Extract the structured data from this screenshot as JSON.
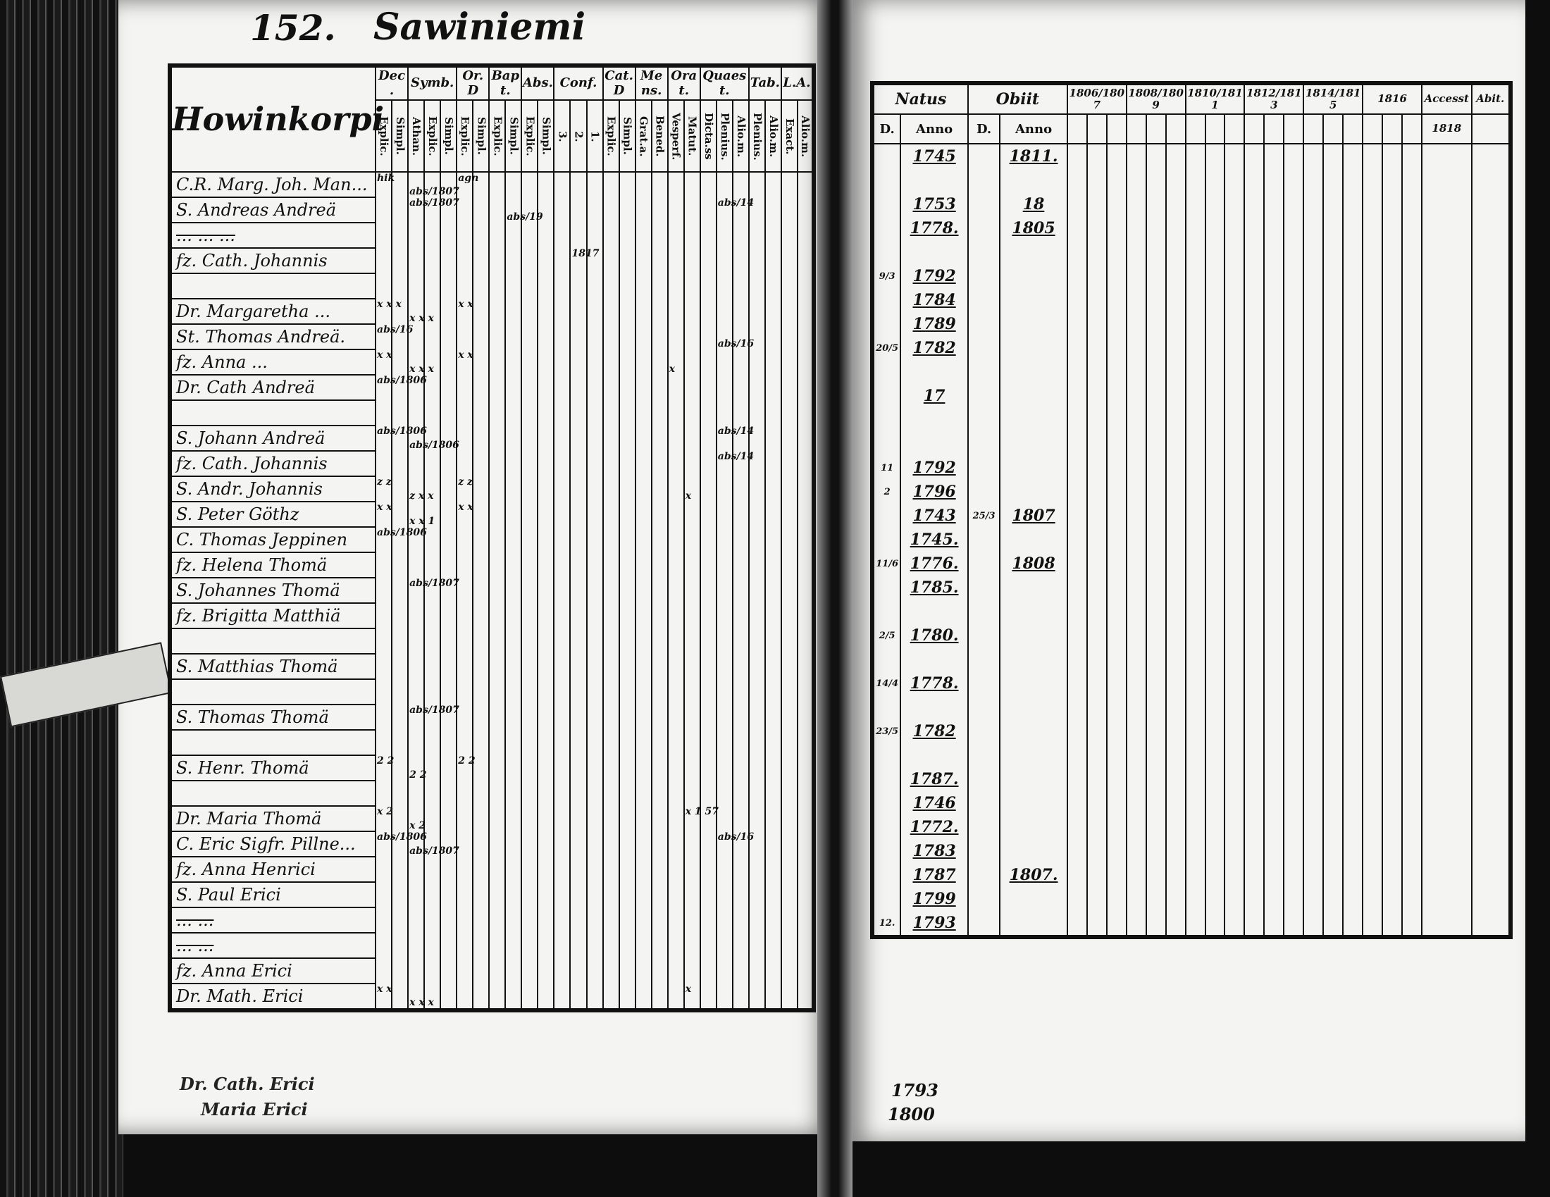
{
  "left_page": {
    "page_number": "152.",
    "village": "Sawiniemi",
    "farm": "Howinkorpi",
    "column_groups": [
      {
        "label": "Dec.",
        "subs": [
          "Explic.",
          "Simpl."
        ]
      },
      {
        "label": "Symb.",
        "subs": [
          "Athan.",
          "Explic.",
          "Simpl."
        ]
      },
      {
        "label": "Or.D",
        "subs": [
          "Explic.",
          "Simpl."
        ]
      },
      {
        "label": "Bapt.",
        "subs": [
          "Explic.",
          "Simpl."
        ]
      },
      {
        "label": "Abs.",
        "subs": [
          "Explic.",
          "Simpl."
        ]
      },
      {
        "label": "Conf.",
        "subs": [
          "3.",
          "2.",
          "1."
        ]
      },
      {
        "label": "Cat.D",
        "subs": [
          "Explic.",
          "Simpl."
        ]
      },
      {
        "label": "Mens.",
        "subs": [
          "Grat.a.",
          "Bened."
        ]
      },
      {
        "label": "Orat.",
        "subs": [
          "Vesperf.",
          "Matut."
        ]
      },
      {
        "label": "Quaest.",
        "subs": [
          "Dicta.ss",
          "Plenius.",
          "Alio.m."
        ]
      },
      {
        "label": "Tab.",
        "subs": [
          "Plenius.",
          "Alio.m."
        ]
      },
      {
        "label": "L.A.",
        "subs": [
          "Exact.",
          "Alio.m."
        ]
      }
    ],
    "rows": [
      {
        "name": "C.R. Marg. Joh. Man...",
        "marks": {
          "0": "hik",
          "2": "abs/1807",
          "5": "agn"
        }
      },
      {
        "name": "S. Andreas Andreä",
        "marks": {
          "2": "abs/1807",
          "8": "abs/19",
          "21": "abs/14"
        }
      },
      {
        "name": "... ... ...",
        "struck": true
      },
      {
        "name": "fz. Cath. Johannis",
        "marks": {
          "12": "1817"
        }
      },
      {
        "name": "",
        "marks": {}
      },
      {
        "name": "Dr. Margaretha ...",
        "marks": {
          "0": "x x x",
          "2": "x x x",
          "5": "x x"
        }
      },
      {
        "name": "St. Thomas Andreä.",
        "marks": {
          "0": "abs/16",
          "21": "abs/16"
        }
      },
      {
        "name": "fz. Anna ...",
        "marks": {
          "0": "x x",
          "2": "x x x",
          "5": "x x",
          "18": "x"
        }
      },
      {
        "name": "Dr. Cath Andreä",
        "marks": {
          "0": "abs/1806"
        }
      },
      {
        "name": "",
        "marks": {}
      },
      {
        "name": "S. Johann Andreä",
        "marks": {
          "0": "abs/1806",
          "2": "abs/1806",
          "21": "abs/14"
        }
      },
      {
        "name": "fz. Cath. Johannis",
        "marks": {
          "21": "abs/14"
        }
      },
      {
        "name": "S. Andr. Johannis",
        "marks": {
          "0": "z z",
          "2": "z x x",
          "5": "z z",
          "19": "x"
        }
      },
      {
        "name": "S. Peter Göthz",
        "marks": {
          "0": "x x",
          "2": "x x 1",
          "5": "x x"
        }
      },
      {
        "name": "C. Thomas Jeppinen",
        "marks": {
          "0": "abs/1806"
        }
      },
      {
        "name": "fz. Helena Thomä",
        "marks": {}
      },
      {
        "name": "S. Johannes Thomä",
        "marks": {
          "2": "abs/1807"
        }
      },
      {
        "name": "fz. Brigitta Matthiä",
        "marks": {}
      },
      {
        "name": "",
        "marks": {}
      },
      {
        "name": "S. Matthias Thomä",
        "marks": {}
      },
      {
        "name": "",
        "marks": {}
      },
      {
        "name": "S. Thomas Thomä",
        "marks": {
          "2": "abs/1807"
        }
      },
      {
        "name": "",
        "marks": {}
      },
      {
        "name": "S. Henr. Thomä",
        "marks": {
          "0": "2 2",
          "2": "2 2",
          "5": "2 2"
        }
      },
      {
        "name": "",
        "marks": {}
      },
      {
        "name": "Dr. Maria Thomä",
        "marks": {
          "0": "x 2",
          "2": "x 2",
          "19": "x 1 57"
        }
      },
      {
        "name": "C. Eric Sigfr. Pillne...",
        "marks": {
          "0": "abs/1806",
          "2": "abs/1807",
          "21": "abs/16"
        }
      },
      {
        "name": "fz. Anna Henrici",
        "marks": {}
      },
      {
        "name": "S. Paul Erici",
        "marks": {}
      },
      {
        "name": "... ...",
        "struck": true
      },
      {
        "name": "... ...",
        "struck": true
      },
      {
        "name": "fz. Anna Erici",
        "marks": {}
      },
      {
        "name": "Dr. Math. Erici",
        "marks": {
          "0": "x x",
          "2": "x x x",
          "19": "x"
        }
      }
    ],
    "extra_names": [
      "Dr. Cath. Erici",
      "Maria Erici"
    ]
  },
  "right_page": {
    "natus_label": "Natus",
    "obiit_label": "Obiit",
    "d_label": "D.",
    "anno_label": "Anno",
    "year_groups": [
      "1806/1807",
      "1808/1809",
      "1810/1811",
      "1812/1813",
      "1814/1815",
      "1816"
    ],
    "accessit_label": "Accesst",
    "accessit_year": "1818",
    "abit_label": "Abit.",
    "rows": [
      {
        "d": "",
        "natus": "1745",
        "od": "",
        "obiit": "1811."
      },
      {
        "d": "",
        "natus": "",
        "od": "",
        "obiit": ""
      },
      {
        "d": "",
        "natus": "1753",
        "od": "",
        "obiit": "18"
      },
      {
        "d": "",
        "natus": "1778.",
        "od": "",
        "obiit": "1805"
      },
      {
        "d": "",
        "natus": "",
        "od": "",
        "obiit": ""
      },
      {
        "d": "9/3",
        "natus": "1792",
        "od": "",
        "obiit": ""
      },
      {
        "d": "",
        "natus": "1784",
        "od": "",
        "obiit": ""
      },
      {
        "d": "",
        "natus": "1789",
        "od": "",
        "obiit": ""
      },
      {
        "d": "20/5",
        "natus": "1782",
        "od": "",
        "obiit": ""
      },
      {
        "d": "",
        "natus": "",
        "od": "",
        "obiit": ""
      },
      {
        "d": "",
        "natus": "17",
        "od": "",
        "obiit": ""
      },
      {
        "d": "",
        "natus": "",
        "od": "",
        "obiit": ""
      },
      {
        "d": "",
        "natus": "",
        "od": "",
        "obiit": ""
      },
      {
        "d": "11",
        "natus": "1792",
        "od": "",
        "obiit": ""
      },
      {
        "d": "2",
        "natus": "1796",
        "od": "",
        "obiit": ""
      },
      {
        "d": "",
        "natus": "1743",
        "od": "25/3",
        "obiit": "1807"
      },
      {
        "d": "",
        "natus": "1745.",
        "od": "",
        "obiit": ""
      },
      {
        "d": "11/6",
        "natus": "1776.",
        "od": "",
        "obiit": "1808"
      },
      {
        "d": "",
        "natus": "1785.",
        "od": "",
        "obiit": ""
      },
      {
        "d": "",
        "natus": "",
        "od": "",
        "obiit": ""
      },
      {
        "d": "2/5",
        "natus": "1780.",
        "od": "",
        "obiit": ""
      },
      {
        "d": "",
        "natus": "",
        "od": "",
        "obiit": ""
      },
      {
        "d": "14/4",
        "natus": "1778.",
        "od": "",
        "obiit": ""
      },
      {
        "d": "",
        "natus": "",
        "od": "",
        "obiit": ""
      },
      {
        "d": "23/5",
        "natus": "1782",
        "od": "",
        "obiit": ""
      },
      {
        "d": "",
        "natus": "",
        "od": "",
        "obiit": ""
      },
      {
        "d": "",
        "natus": "1787.",
        "od": "",
        "obiit": ""
      },
      {
        "d": "",
        "natus": "1746",
        "od": "",
        "obiit": ""
      },
      {
        "d": "",
        "natus": "1772.",
        "od": "",
        "obiit": ""
      },
      {
        "d": "",
        "natus": "1783",
        "od": "",
        "obiit": ""
      },
      {
        "d": "",
        "natus": "1787",
        "od": "",
        "obiit": "1807."
      },
      {
        "d": "",
        "natus": "1799",
        "od": "",
        "obiit": ""
      },
      {
        "d": "12.",
        "natus": "1793",
        "od": "",
        "obiit": ""
      }
    ],
    "footnote_lines": [
      "1793",
      "1800"
    ]
  }
}
